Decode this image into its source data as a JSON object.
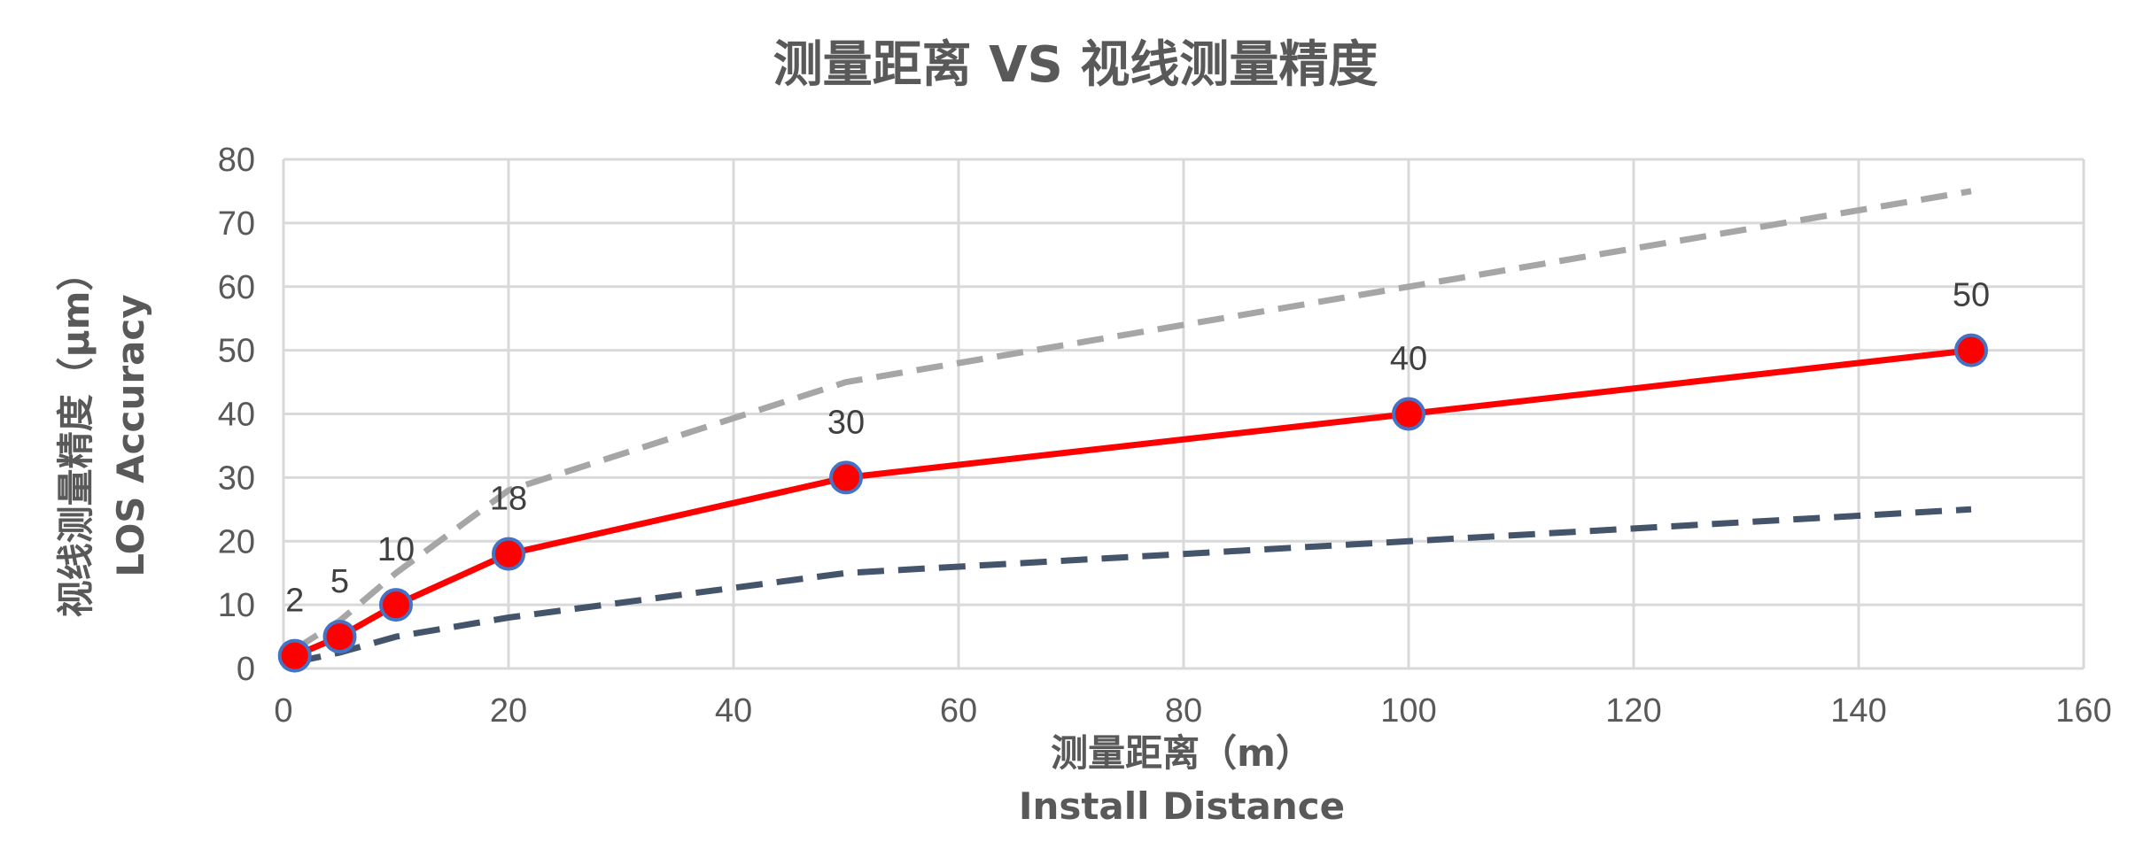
{
  "chart_data": {
    "type": "line",
    "title": "测量距离 VS 视线测量精度",
    "xlabel": "测量距离（m）",
    "xlabel_en": "Install Distance",
    "ylabel": "视线测量精度（μm）",
    "ylabel_en": "LOS Accuracy",
    "xlim": [
      0,
      160
    ],
    "ylim": [
      0,
      80
    ],
    "x_ticks": [
      0,
      20,
      40,
      60,
      80,
      100,
      120,
      140,
      160
    ],
    "y_ticks": [
      0,
      10,
      20,
      30,
      40,
      50,
      60,
      70,
      80
    ],
    "grid": true,
    "series": [
      {
        "style": "solid-red-markers",
        "color": "#ff0000",
        "marker_color": "#ff0000",
        "marker_edge": "#4472c4",
        "x": [
          1,
          5,
          10,
          20,
          50,
          100,
          150
        ],
        "values": [
          2,
          5,
          10,
          18,
          30,
          40,
          50
        ],
        "data_labels": [
          "2",
          "5",
          "10",
          "18",
          "30",
          "40",
          "50"
        ]
      },
      {
        "style": "dashed-upper",
        "color": "#a6a6a6",
        "x": [
          1,
          5,
          10,
          20,
          50,
          100,
          150
        ],
        "values": [
          3,
          7.5,
          15,
          28,
          45,
          60,
          75
        ]
      },
      {
        "style": "dashed-lower",
        "color": "#44546a",
        "x": [
          1,
          5,
          10,
          20,
          50,
          100,
          150
        ],
        "values": [
          1,
          2.5,
          5,
          8,
          15,
          20,
          25
        ]
      }
    ]
  }
}
